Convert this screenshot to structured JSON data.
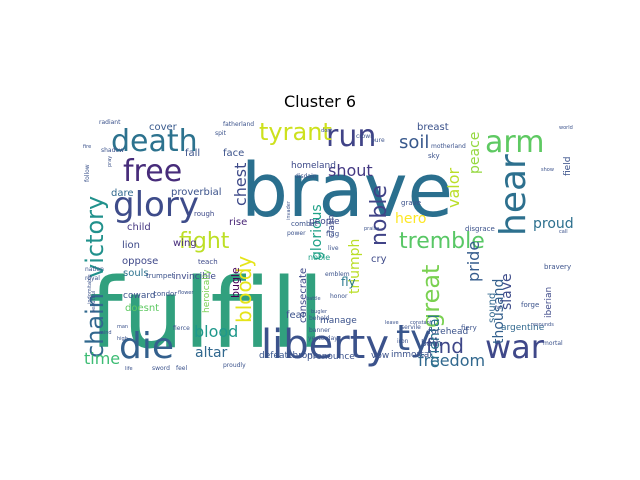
{
  "chart_data": {
    "type": "wordcloud",
    "title": "Cluster 6",
    "colormap": "viridis",
    "background": "#ffffff",
    "words": [
      {
        "text": "fulfill",
        "weight": 1.0,
        "color": "#31a07e"
      },
      {
        "text": "brave",
        "weight": 0.92,
        "color": "#2a6f8e"
      },
      {
        "text": "liberty",
        "weight": 0.5,
        "color": "#3b528b"
      },
      {
        "text": "die",
        "weight": 0.48,
        "color": "#34608d"
      },
      {
        "text": "death",
        "weight": 0.46,
        "color": "#2c728e"
      },
      {
        "text": "free",
        "weight": 0.46,
        "color": "#472c7a"
      },
      {
        "text": "glory",
        "weight": 0.44,
        "color": "#3e4c8a"
      },
      {
        "text": "run",
        "weight": 0.43,
        "color": "#404387"
      },
      {
        "text": "arm",
        "weight": 0.43,
        "color": "#5ec962"
      },
      {
        "text": "war",
        "weight": 0.41,
        "color": "#3f4889"
      },
      {
        "text": "hear",
        "weight": 0.4,
        "color": "#2d708e"
      },
      {
        "text": "tyrant",
        "weight": 0.32,
        "color": "#cde11d"
      },
      {
        "text": "victory",
        "weight": 0.3,
        "color": "#21918c"
      },
      {
        "text": "chain",
        "weight": 0.27,
        "color": "#31688e"
      },
      {
        "text": "great",
        "weight": 0.27,
        "color": "#7ad151"
      },
      {
        "text": "tremble",
        "weight": 0.25,
        "color": "#58c765"
      },
      {
        "text": "fight",
        "weight": 0.24,
        "color": "#bddf26"
      },
      {
        "text": "bloody",
        "weight": 0.24,
        "color": "#e5e419"
      },
      {
        "text": "noble",
        "weight": 0.23,
        "color": "#404387"
      },
      {
        "text": "ty",
        "weight": 0.42,
        "color": "#39568c"
      },
      {
        "text": "find",
        "weight": 0.24,
        "color": "#3f4788"
      },
      {
        "text": "freedom",
        "weight": 0.2,
        "color": "#31688e"
      },
      {
        "text": "soil",
        "weight": 0.2,
        "color": "#38588c"
      },
      {
        "text": "shout",
        "weight": 0.19,
        "color": "#443983"
      },
      {
        "text": "blood",
        "weight": 0.2,
        "color": "#1f988b"
      },
      {
        "text": "time",
        "weight": 0.19,
        "color": "#3dbc74"
      },
      {
        "text": "chest",
        "weight": 0.19,
        "color": "#3e4a89"
      },
      {
        "text": "valor",
        "weight": 0.19,
        "color": "#bade28"
      },
      {
        "text": "thousand",
        "weight": 0.18,
        "color": "#34608d"
      },
      {
        "text": "peace",
        "weight": 0.16,
        "color": "#95d840"
      },
      {
        "text": "pride",
        "weight": 0.17,
        "color": "#365c8d"
      },
      {
        "text": "slave",
        "weight": 0.17,
        "color": "#3e4c8a"
      },
      {
        "text": "hero",
        "weight": 0.15,
        "color": "#fde725"
      },
      {
        "text": "oriental",
        "weight": 0.14,
        "color": "#2c728e"
      },
      {
        "text": "glorious",
        "weight": 0.14,
        "color": "#1fa187"
      },
      {
        "text": "altar",
        "weight": 0.14,
        "color": "#31688e"
      },
      {
        "text": "triumph",
        "weight": 0.14,
        "color": "#bade28"
      },
      {
        "text": "proud",
        "weight": 0.14,
        "color": "#2d708e"
      },
      {
        "text": "breast",
        "weight": 0.11,
        "color": "#3b528b"
      },
      {
        "text": "cover",
        "weight": 0.1,
        "color": "#38598c"
      },
      {
        "text": "bugle",
        "weight": 0.1,
        "color": "#440154"
      },
      {
        "text": "fly",
        "weight": 0.09,
        "color": "#2a788e"
      },
      {
        "text": "fall",
        "weight": 0.09,
        "color": "#3b528b"
      },
      {
        "text": "face",
        "weight": 0.09,
        "color": "#3b528b"
      },
      {
        "text": "proverbial",
        "weight": 0.09,
        "color": "#3b528b"
      },
      {
        "text": "dare",
        "weight": 0.09,
        "color": "#31688e"
      },
      {
        "text": "rise",
        "weight": 0.09,
        "color": "#482576"
      },
      {
        "text": "child",
        "weight": 0.09,
        "color": "#453781"
      },
      {
        "text": "lion",
        "weight": 0.08,
        "color": "#3e4a89"
      },
      {
        "text": "wing",
        "weight": 0.08,
        "color": "#472d7b"
      },
      {
        "text": "souls",
        "weight": 0.08,
        "color": "#2c728e"
      },
      {
        "text": "oppose",
        "weight": 0.08,
        "color": "#3f4889"
      },
      {
        "text": "doesnt",
        "weight": 0.08,
        "color": "#5ec962"
      },
      {
        "text": "defeat",
        "weight": 0.08,
        "color": "#39568c"
      },
      {
        "text": "throne",
        "weight": 0.08,
        "color": "#3b528b"
      },
      {
        "text": "pronounce",
        "weight": 0.08,
        "color": "#3b528b"
      },
      {
        "text": "vow",
        "weight": 0.08,
        "color": "#3b528b"
      },
      {
        "text": "immortal",
        "weight": 0.08,
        "color": "#3b528b"
      },
      {
        "text": "people",
        "weight": 0.08,
        "color": "#3e4a89"
      },
      {
        "text": "homeland",
        "weight": 0.08,
        "color": "#3e4a89"
      },
      {
        "text": "consecrate",
        "weight": 0.07,
        "color": "#3e4a89"
      },
      {
        "text": "sound",
        "weight": 0.07,
        "color": "#31688e"
      },
      {
        "text": "iberian",
        "weight": 0.07,
        "color": "#3e4a89"
      },
      {
        "text": "forehead",
        "weight": 0.07,
        "color": "#3b528b"
      },
      {
        "text": "argentine",
        "weight": 0.07,
        "color": "#31688e"
      },
      {
        "text": "bath",
        "weight": 0.07,
        "color": "#3b528b"
      },
      {
        "text": "fear",
        "weight": 0.07,
        "color": "#3b528b"
      },
      {
        "text": "cry",
        "weight": 0.07,
        "color": "#3e4a89"
      },
      {
        "text": "invincible",
        "weight": 0.06,
        "color": "#3e4a89"
      },
      {
        "text": "coward",
        "weight": 0.06,
        "color": "#3b528b"
      },
      {
        "text": "heroically",
        "weight": 0.06,
        "color": "#7ad151"
      },
      {
        "text": "manage",
        "weight": 0.06,
        "color": "#3b528b"
      },
      {
        "text": "noble",
        "weight": 0.05,
        "color": "#1fa187"
      },
      {
        "text": "crown",
        "weight": 0.05,
        "color": "#3b528b"
      },
      {
        "text": "clash",
        "weight": 0.05,
        "color": "#3e4a89"
      },
      {
        "text": "combat",
        "weight": 0.04,
        "color": "#3b528b"
      },
      {
        "text": "flag",
        "weight": 0.04,
        "color": "#3b528b"
      },
      {
        "text": "grave",
        "weight": 0.04,
        "color": "#3b528b"
      },
      {
        "text": "field",
        "weight": 0.05,
        "color": "#3b528b"
      },
      {
        "text": "forge",
        "weight": 0.04,
        "color": "#3b528b"
      },
      {
        "text": "bravery",
        "weight": 0.04,
        "color": "#3b528b"
      },
      {
        "text": "teach",
        "weight": 0.04,
        "color": "#3e4a89"
      },
      {
        "text": "condor",
        "weight": 0.04,
        "color": "#3b528b"
      },
      {
        "text": "trumpet",
        "weight": 0.04,
        "color": "#3b528b"
      },
      {
        "text": "rough",
        "weight": 0.04,
        "color": "#3e4a89"
      },
      {
        "text": "spit",
        "weight": 0.04,
        "color": "#3b528b"
      },
      {
        "text": "sky",
        "weight": 0.04,
        "color": "#3b528b"
      },
      {
        "text": "fatherland",
        "weight": 0.04,
        "color": "#3b528b"
      },
      {
        "text": "motherland",
        "weight": 0.04,
        "color": "#3b528b"
      },
      {
        "text": "disdain",
        "weight": 0.04,
        "color": "#3b528b"
      },
      {
        "text": "power",
        "weight": 0.04,
        "color": "#3b528b"
      },
      {
        "text": "pure",
        "weight": 0.04,
        "color": "#3b528b"
      },
      {
        "text": "live",
        "weight": 0.04,
        "color": "#3b528b"
      },
      {
        "text": "emblem",
        "weight": 0.04,
        "color": "#3b528b"
      },
      {
        "text": "honor",
        "weight": 0.04,
        "color": "#3b528b"
      },
      {
        "text": "yesterday",
        "weight": 0.04,
        "color": "#3b528b"
      },
      {
        "text": "banner",
        "weight": 0.04,
        "color": "#3b528b"
      },
      {
        "text": "servile",
        "weight": 0.04,
        "color": "#3b528b"
      },
      {
        "text": "fiery",
        "weight": 0.04,
        "color": "#3b528b"
      },
      {
        "text": "iron",
        "weight": 0.04,
        "color": "#3b528b"
      },
      {
        "text": "disgrace",
        "weight": 0.04,
        "color": "#3b528b"
      },
      {
        "text": "mortal",
        "weight": 0.04,
        "color": "#3b528b"
      },
      {
        "text": "resounds",
        "weight": 0.03,
        "color": "#3b528b"
      },
      {
        "text": "behold",
        "weight": 0.04,
        "color": "#3b528b"
      },
      {
        "text": "leave",
        "weight": 0.03,
        "color": "#3b528b"
      },
      {
        "text": "constant",
        "weight": 0.03,
        "color": "#3b528b"
      },
      {
        "text": "proudly",
        "weight": 0.03,
        "color": "#3b528b"
      },
      {
        "text": "fierce",
        "weight": 0.03,
        "color": "#3b528b"
      },
      {
        "text": "sword",
        "weight": 0.03,
        "color": "#3b528b"
      },
      {
        "text": "feel",
        "weight": 0.03,
        "color": "#3b528b"
      },
      {
        "text": "royal",
        "weight": 0.03,
        "color": "#3b528b"
      },
      {
        "text": "nation",
        "weight": 0.03,
        "color": "#3b528b"
      },
      {
        "text": "radiant",
        "weight": 0.03,
        "color": "#3b528b"
      },
      {
        "text": "shadow",
        "weight": 0.03,
        "color": "#3b528b"
      },
      {
        "text": "follow",
        "weight": 0.03,
        "color": "#3b528b"
      },
      {
        "text": "mind",
        "weight": 0.03,
        "color": "#3b528b"
      },
      {
        "text": "life",
        "weight": 0.03,
        "color": "#3b528b"
      },
      {
        "text": "beautiful",
        "weight": 0.03,
        "color": "#3b528b"
      },
      {
        "text": "flower",
        "weight": 0.03,
        "color": "#3b528b"
      },
      {
        "text": "invader",
        "weight": 0.03,
        "color": "#3b528b"
      },
      {
        "text": "battle",
        "weight": 0.03,
        "color": "#3b528b"
      },
      {
        "text": "bugler",
        "weight": 0.03,
        "color": "#3b528b"
      },
      {
        "text": "praise",
        "weight": 0.03,
        "color": "#3b528b"
      },
      {
        "text": "show",
        "weight": 0.03,
        "color": "#3b528b"
      },
      {
        "text": "call",
        "weight": 0.03,
        "color": "#3b528b"
      },
      {
        "text": "world",
        "weight": 0.03,
        "color": "#3b528b"
      },
      {
        "text": "fall",
        "weight": 0.03,
        "color": "#3b528b"
      },
      {
        "text": "dont",
        "weight": 0.03,
        "color": "#3b528b"
      },
      {
        "text": "man",
        "weight": 0.03,
        "color": "#3b528b"
      },
      {
        "text": "high",
        "weight": 0.03,
        "color": "#3b528b"
      },
      {
        "text": "fire",
        "weight": 0.03,
        "color": "#3b528b"
      },
      {
        "text": "pray",
        "weight": 0.03,
        "color": "#3b528b"
      },
      {
        "text": "indomitable",
        "weight": 0.03,
        "color": "#3b528b"
      }
    ]
  }
}
